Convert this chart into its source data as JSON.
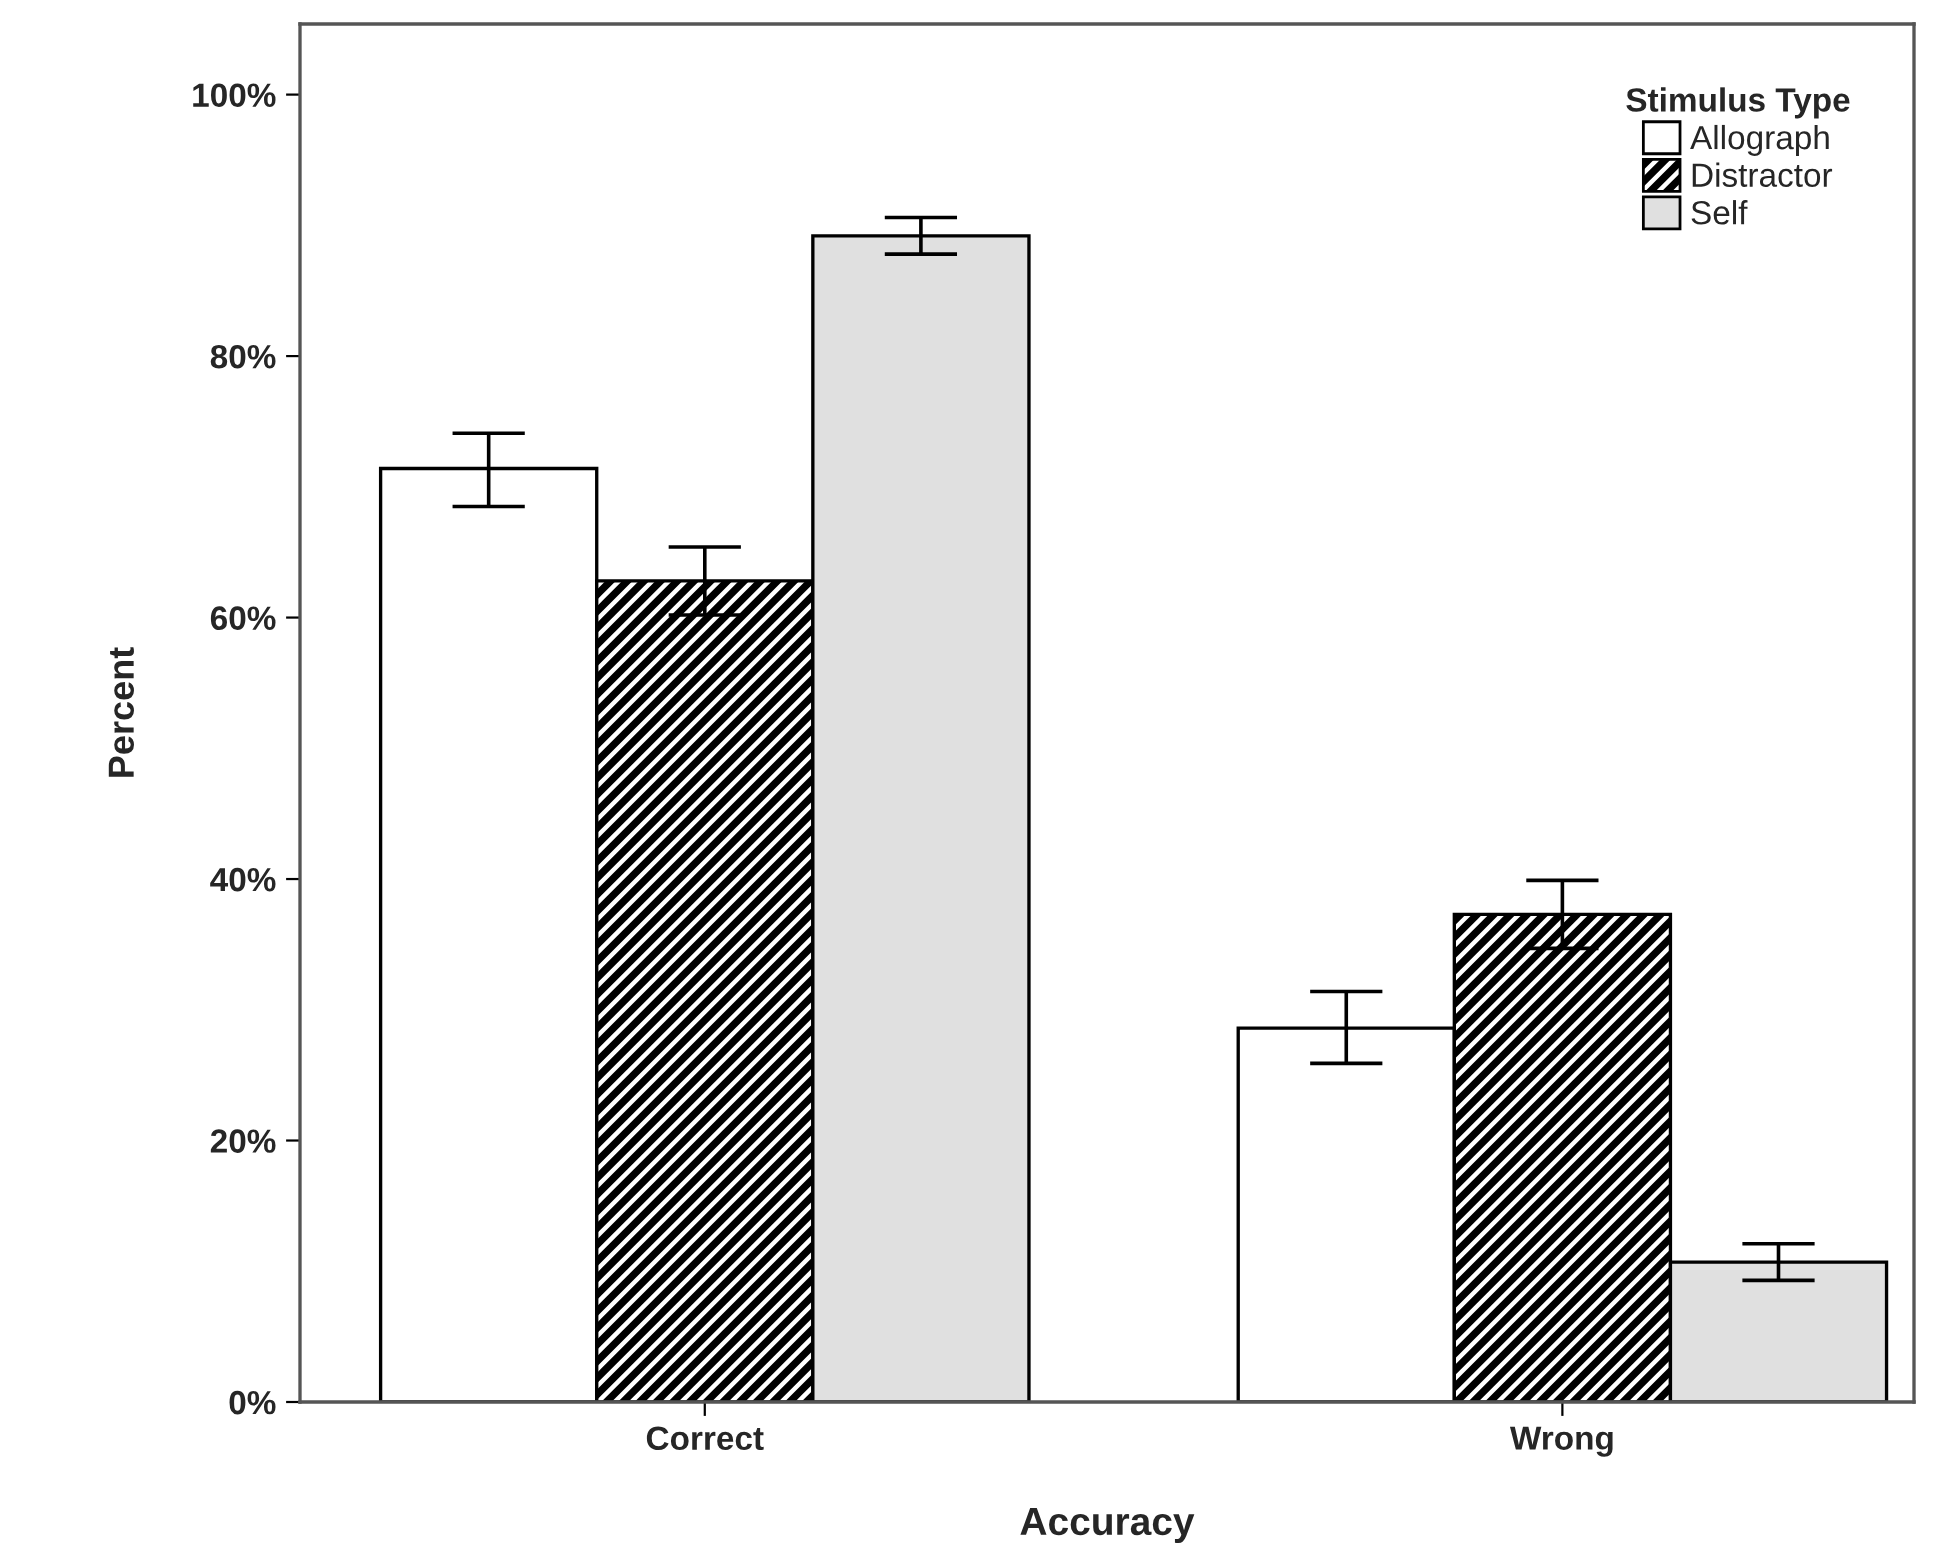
{
  "chart_data": {
    "type": "bar",
    "xlabel": "Accuracy",
    "ylabel": "Percent",
    "legend_title": "Stimulus Type",
    "legend": "top right",
    "grid": false,
    "categories": [
      "Correct",
      "Wrong"
    ],
    "series": [
      {
        "name": "Allograph",
        "color": "#ffffff",
        "values": [
          71.4,
          28.6
        ],
        "errors": [
          [
            68.5,
            74.1
          ],
          [
            25.9,
            31.4
          ]
        ]
      },
      {
        "name": "Distractor",
        "color": "#000000",
        "values": [
          62.8,
          37.3
        ],
        "errors": [
          [
            60.2,
            65.4
          ],
          [
            34.7,
            39.9
          ]
        ]
      },
      {
        "name": "Self",
        "color": "#e0e0e0",
        "values": [
          89.2,
          10.7
        ],
        "errors": [
          [
            87.8,
            90.6
          ],
          [
            9.3,
            12.1
          ]
        ]
      }
    ],
    "ylim": [
      0,
      105.4
    ],
    "yticks": [
      {
        "value": 0,
        "label": "0%"
      },
      {
        "value": 20,
        "label": "20%"
      },
      {
        "value": 40,
        "label": "40%"
      },
      {
        "value": 60,
        "label": "60%"
      },
      {
        "value": 80,
        "label": "80%"
      },
      {
        "value": 100,
        "label": "100%"
      }
    ]
  }
}
